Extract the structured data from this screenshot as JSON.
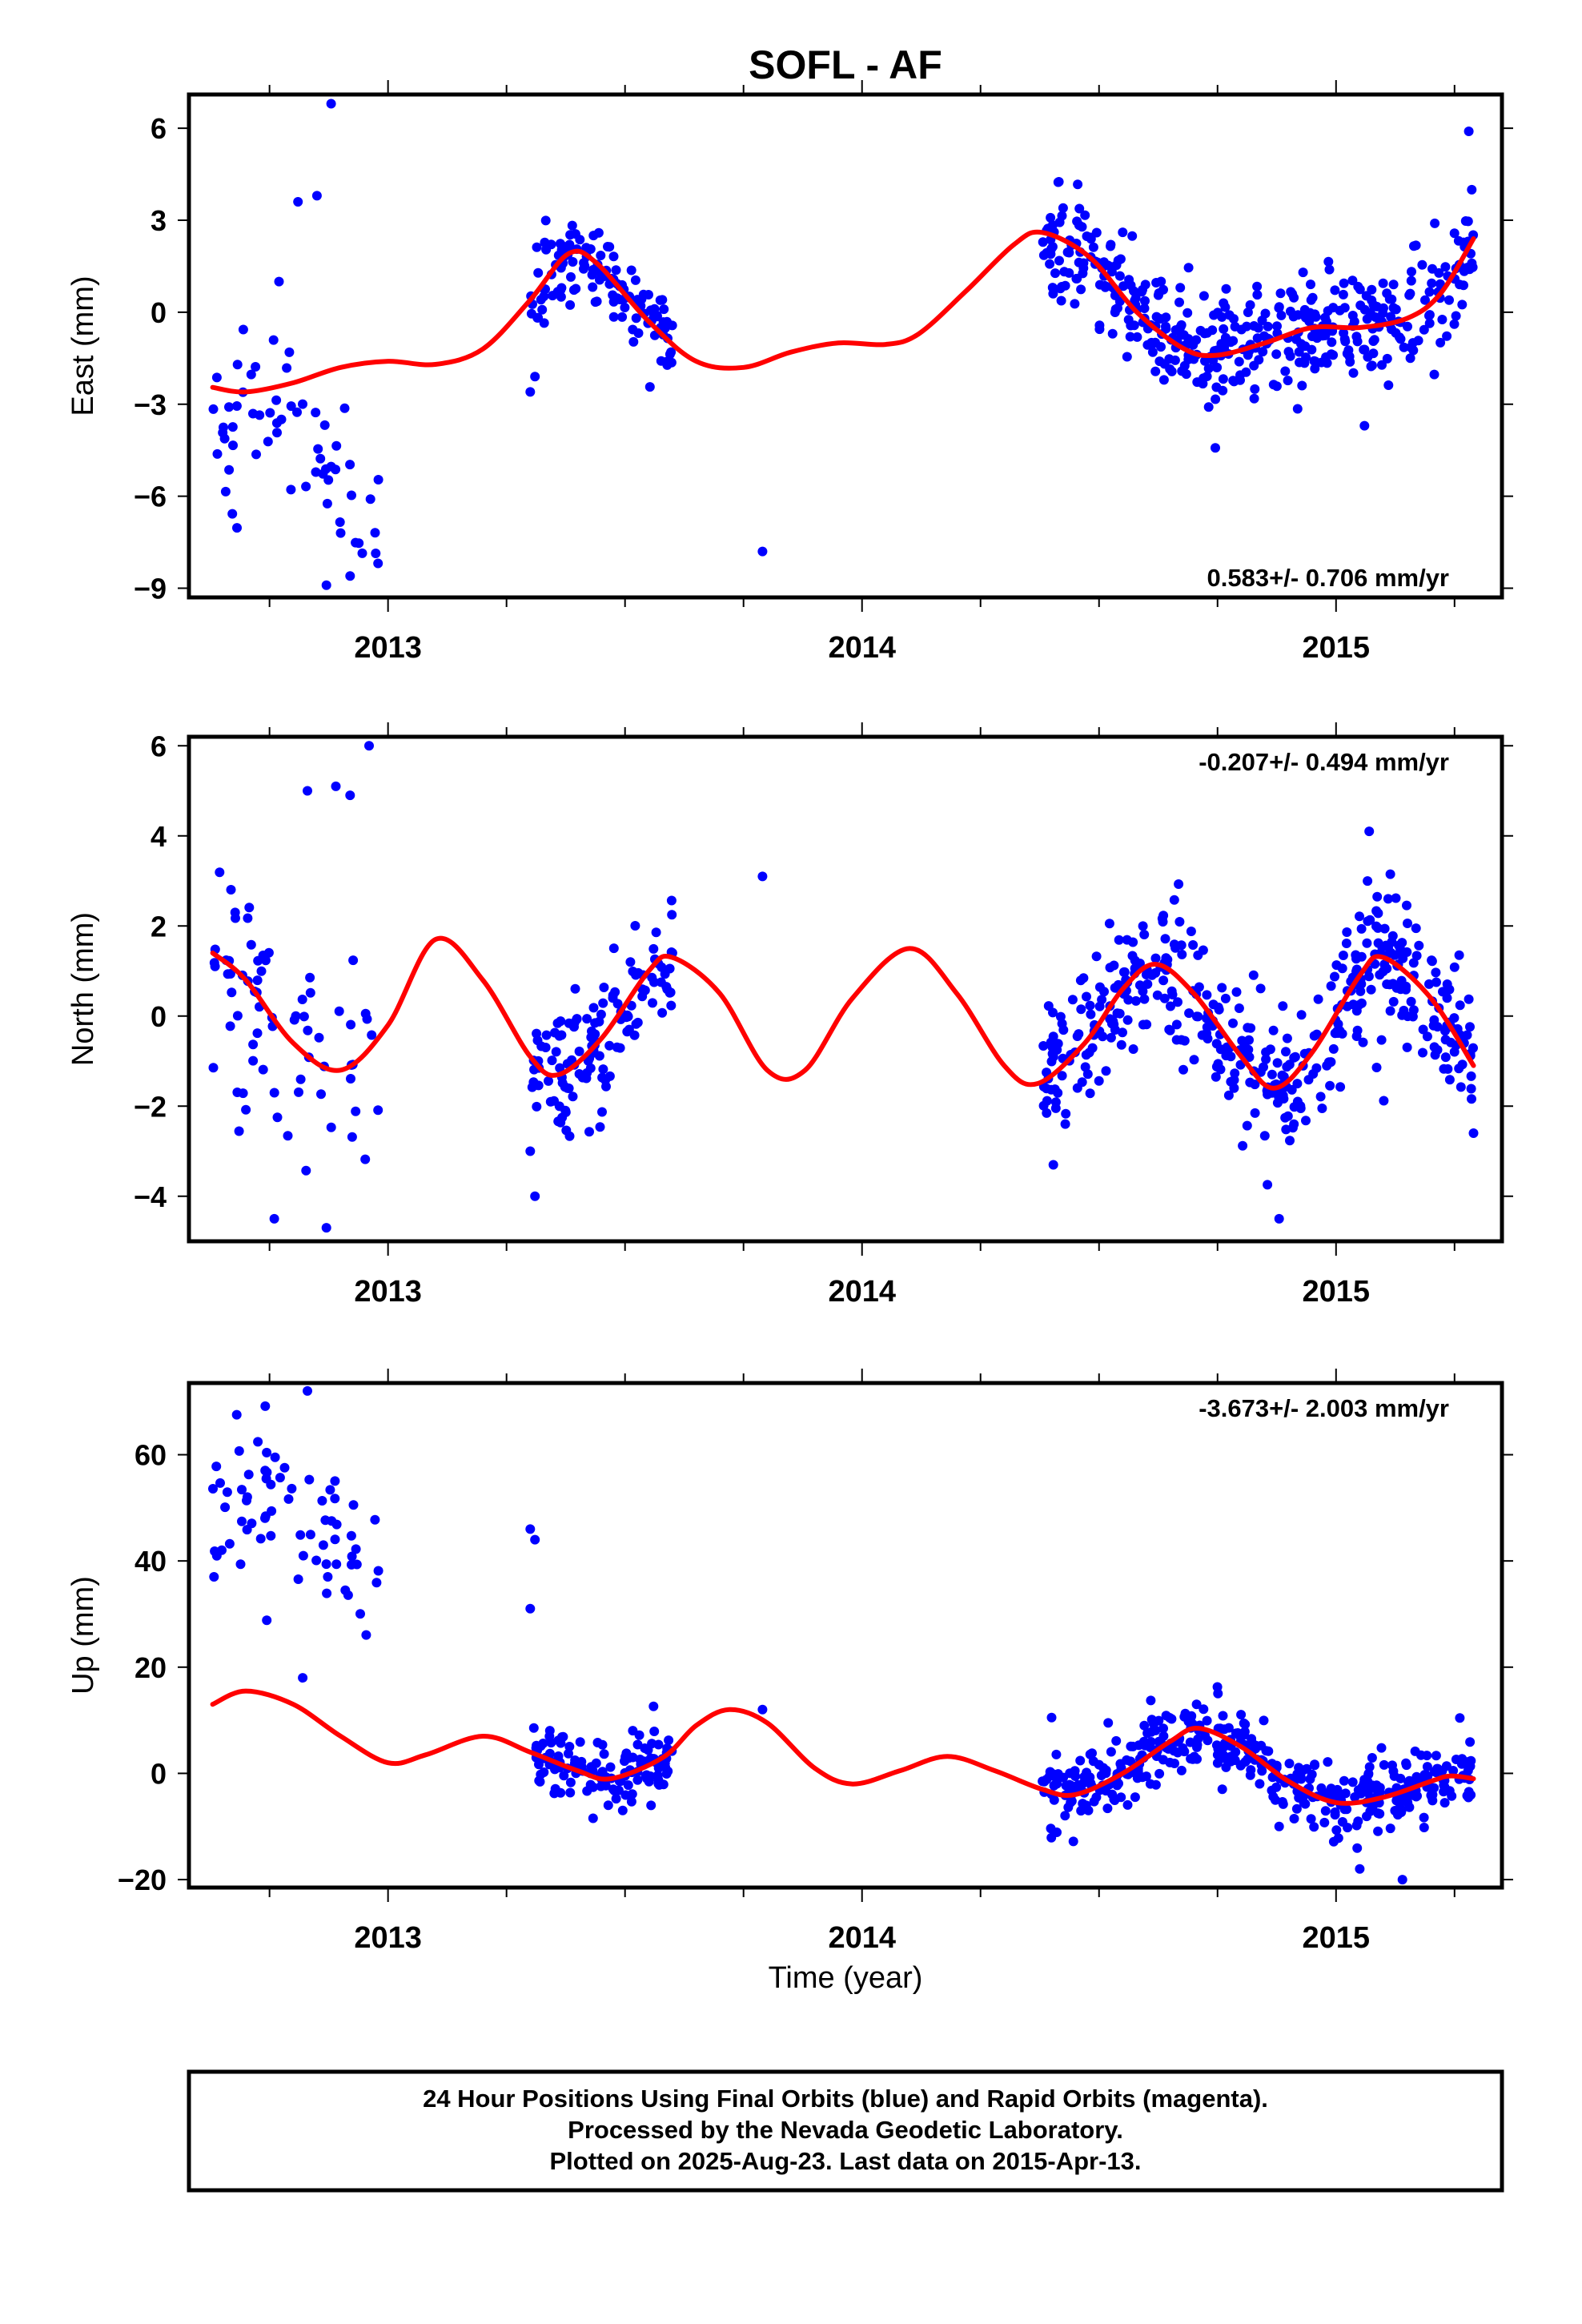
{
  "title": "SOFL - AF",
  "xlabel": "Time (year)",
  "footer": {
    "line1": "24 Hour Positions Using Final Orbits (blue) and Rapid Orbits (magenta).",
    "line2": "Processed by the Nevada Geodetic Laboratory.",
    "line3": "Plotted on 2025-Aug-23. Last data on 2015-Apr-13."
  },
  "colors": {
    "final_orbits": "#0000ff",
    "model_fit": "#ff0000",
    "frame": "#000000"
  },
  "chart_data": [
    {
      "type": "scatter",
      "panel": "east",
      "ylabel": "East (mm)",
      "rate_text": "0.583+/- 0.706 mm/yr",
      "rate_position": "bottom-right",
      "xlim": [
        2012.58,
        2015.35
      ],
      "ylim": [
        -9.3,
        7.1
      ],
      "x_ticks": [
        2013,
        2014,
        2015
      ],
      "y_ticks": [
        6,
        3,
        0,
        -3,
        -6,
        -9
      ],
      "y_tick_labels": [
        "6",
        "3",
        "0",
        "−3",
        "−6",
        "−9"
      ],
      "series": [
        {
          "kind": "points",
          "data_segments": [
            {
              "range": [
                2012.63,
                2012.98
              ],
              "center": -4.5,
              "amp": 1.5,
              "spread": 1.4,
              "n": 60
            },
            {
              "range": [
                2013.3,
                2013.6
              ],
              "center": "model",
              "spread": 0.6,
              "n": 130
            },
            {
              "range": [
                2014.38,
                2015.29
              ],
              "center": "model",
              "spread": 0.9,
              "n": 430
            }
          ],
          "outliers": [
            [
              2012.88,
              6.8
            ],
            [
              2012.85,
              3.8
            ],
            [
              2012.81,
              3.6
            ],
            [
              2012.77,
              1.0
            ],
            [
              2012.87,
              -8.9
            ],
            [
              2012.92,
              -8.6
            ],
            [
              2012.9,
              -7.2
            ],
            [
              2013.79,
              -7.8
            ],
            [
              2013.3,
              -2.6
            ],
            [
              2013.31,
              -2.1
            ],
            [
              2015.06,
              -3.7
            ],
            [
              2015.28,
              5.9
            ]
          ]
        },
        {
          "kind": "model",
          "samples": [
            [
              2012.63,
              -2.45
            ],
            [
              2012.7,
              -2.6
            ],
            [
              2012.8,
              -2.3
            ],
            [
              2012.9,
              -1.8
            ],
            [
              2013.0,
              -1.6
            ],
            [
              2013.1,
              -1.7
            ],
            [
              2013.2,
              -1.2
            ],
            [
              2013.3,
              0.4
            ],
            [
              2013.38,
              1.9
            ],
            [
              2013.44,
              1.6
            ],
            [
              2013.55,
              -0.3
            ],
            [
              2013.65,
              -1.6
            ],
            [
              2013.75,
              -1.8
            ],
            [
              2013.85,
              -1.3
            ],
            [
              2013.95,
              -1.0
            ],
            [
              2014.05,
              -1.05
            ],
            [
              2014.12,
              -0.7
            ],
            [
              2014.22,
              0.7
            ],
            [
              2014.32,
              2.2
            ],
            [
              2014.38,
              2.6
            ],
            [
              2014.48,
              1.8
            ],
            [
              2014.58,
              0.0
            ],
            [
              2014.68,
              -1.2
            ],
            [
              2014.75,
              -1.4
            ],
            [
              2014.85,
              -1.0
            ],
            [
              2014.95,
              -0.5
            ],
            [
              2015.05,
              -0.5
            ],
            [
              2015.15,
              -0.2
            ],
            [
              2015.22,
              0.6
            ],
            [
              2015.29,
              2.4
            ]
          ]
        }
      ]
    },
    {
      "type": "scatter",
      "panel": "north",
      "ylabel": "North (mm)",
      "rate_text": "-0.207+/- 0.494 mm/yr",
      "rate_position": "top-right",
      "xlim": [
        2012.58,
        2015.35
      ],
      "ylim": [
        -5.0,
        6.2
      ],
      "x_ticks": [
        2013,
        2014,
        2015
      ],
      "y_ticks": [
        6,
        4,
        2,
        0,
        -2,
        -4
      ],
      "y_tick_labels": [
        "6",
        "4",
        "2",
        "0",
        "−2",
        "−4"
      ],
      "series": [
        {
          "kind": "points",
          "data_segments": [
            {
              "range": [
                2012.63,
                2012.98
              ],
              "center": "model",
              "spread": 1.3,
              "n": 70
            },
            {
              "range": [
                2013.3,
                2013.6
              ],
              "center": "model",
              "spread": 0.7,
              "n": 130
            },
            {
              "range": [
                2014.38,
                2015.29
              ],
              "center": "model",
              "spread": 0.8,
              "n": 430
            }
          ],
          "outliers": [
            [
              2012.96,
              6.0
            ],
            [
              2012.83,
              5.0
            ],
            [
              2012.89,
              5.1
            ],
            [
              2012.92,
              4.9
            ],
            [
              2012.76,
              -4.5
            ],
            [
              2012.87,
              -4.7
            ],
            [
              2013.31,
              -4.0
            ],
            [
              2013.3,
              -3.0
            ],
            [
              2013.79,
              3.1
            ],
            [
              2014.88,
              -4.5
            ],
            [
              2015.07,
              4.1
            ],
            [
              2015.29,
              -2.6
            ]
          ]
        },
        {
          "kind": "model",
          "samples": [
            [
              2012.63,
              1.4
            ],
            [
              2012.7,
              0.8
            ],
            [
              2012.8,
              -0.6
            ],
            [
              2012.9,
              -1.2
            ],
            [
              2013.0,
              -0.2
            ],
            [
              2013.1,
              1.7
            ],
            [
              2013.2,
              0.8
            ],
            [
              2013.3,
              -0.9
            ],
            [
              2013.36,
              -1.3
            ],
            [
              2013.45,
              -0.5
            ],
            [
              2013.55,
              1.0
            ],
            [
              2013.6,
              1.3
            ],
            [
              2013.7,
              0.5
            ],
            [
              2013.8,
              -1.2
            ],
            [
              2013.88,
              -1.2
            ],
            [
              2013.98,
              0.4
            ],
            [
              2014.1,
              1.5
            ],
            [
              2014.2,
              0.5
            ],
            [
              2014.3,
              -1.1
            ],
            [
              2014.37,
              -1.5
            ],
            [
              2014.47,
              -0.6
            ],
            [
              2014.55,
              0.6
            ],
            [
              2014.62,
              1.15
            ],
            [
              2014.7,
              0.5
            ],
            [
              2014.8,
              -0.9
            ],
            [
              2014.87,
              -1.6
            ],
            [
              2014.95,
              -0.8
            ],
            [
              2015.05,
              0.9
            ],
            [
              2015.1,
              1.3
            ],
            [
              2015.2,
              0.4
            ],
            [
              2015.29,
              -1.1
            ]
          ]
        }
      ]
    },
    {
      "type": "scatter",
      "panel": "up",
      "ylabel": "Up (mm)",
      "rate_text": "-3.673+/- 2.003 mm/yr",
      "rate_position": "top-right",
      "xlim": [
        2012.58,
        2015.35
      ],
      "ylim": [
        -21.5,
        73.5
      ],
      "x_ticks": [
        2013,
        2014,
        2015
      ],
      "y_ticks": [
        60,
        40,
        20,
        0,
        -20
      ],
      "y_tick_labels": [
        "60",
        "40",
        "20",
        "0",
        "−20"
      ],
      "series": [
        {
          "kind": "points",
          "data_segments": [
            {
              "range": [
                2012.63,
                2012.98
              ],
              "center": 46,
              "amp": 8,
              "spread": 7,
              "n": 70
            },
            {
              "range": [
                2013.3,
                2013.6
              ],
              "center": "model",
              "spread": 3,
              "n": 130
            },
            {
              "range": [
                2014.38,
                2015.29
              ],
              "center": "model",
              "spread": 3.5,
              "n": 430
            }
          ],
          "outliers": [
            [
              2013.3,
              46.0
            ],
            [
              2013.31,
              44.0
            ],
            [
              2013.3,
              31.0
            ],
            [
              2013.79,
              12.0
            ],
            [
              2012.83,
              72.0
            ],
            [
              2012.82,
              18.0
            ],
            [
              2015.05,
              -18.0
            ],
            [
              2015.14,
              -20.0
            ],
            [
              2014.4,
              10.5
            ],
            [
              2014.88,
              -10.0
            ]
          ]
        },
        {
          "kind": "model",
          "samples": [
            [
              2012.63,
              13.0
            ],
            [
              2012.7,
              15.5
            ],
            [
              2012.8,
              13.0
            ],
            [
              2012.9,
              7.0
            ],
            [
              2013.0,
              2.0
            ],
            [
              2013.08,
              3.5
            ],
            [
              2013.2,
              7.0
            ],
            [
              2013.3,
              4.0
            ],
            [
              2013.4,
              0.5
            ],
            [
              2013.47,
              -1.0
            ],
            [
              2013.58,
              3.0
            ],
            [
              2013.65,
              9.0
            ],
            [
              2013.72,
              12.0
            ],
            [
              2013.8,
              9.5
            ],
            [
              2013.9,
              1.0
            ],
            [
              2013.98,
              -2.0
            ],
            [
              2014.08,
              0.5
            ],
            [
              2014.18,
              3.2
            ],
            [
              2014.28,
              0.5
            ],
            [
              2014.38,
              -3.0
            ],
            [
              2014.45,
              -4.0
            ],
            [
              2014.55,
              0.0
            ],
            [
              2014.65,
              6.0
            ],
            [
              2014.71,
              8.5
            ],
            [
              2014.8,
              5.0
            ],
            [
              2014.9,
              -1.5
            ],
            [
              2015.0,
              -5.5
            ],
            [
              2015.1,
              -4.5
            ],
            [
              2015.2,
              -1.5
            ],
            [
              2015.24,
              -0.5
            ],
            [
              2015.29,
              -1.0
            ]
          ]
        }
      ]
    }
  ]
}
